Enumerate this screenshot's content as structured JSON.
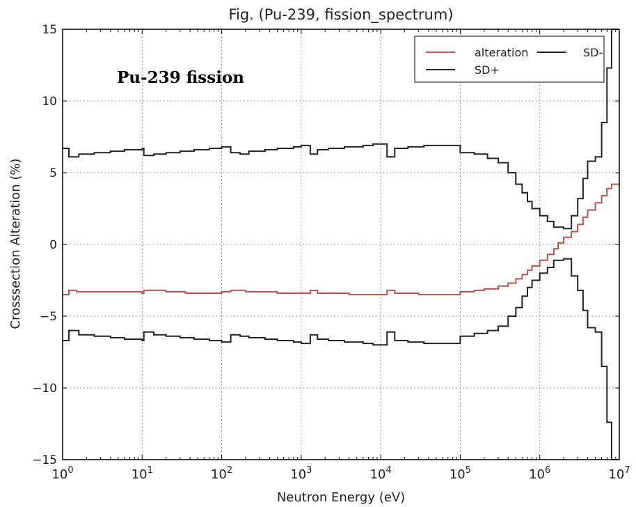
{
  "chart_data": {
    "type": "line",
    "title": "Fig. (Pu-239, fission_spectrum)",
    "annotation": "Pu-239 fission",
    "xlabel": "Neutron Energy (eV)",
    "ylabel": "Crosssection Alteration (%)",
    "xscale": "log",
    "xlim": [
      1,
      10000000
    ],
    "ylim": [
      -15,
      15
    ],
    "grid": true,
    "legend_position": "top-right",
    "x_ticks": [
      {
        "value": 1,
        "base": "10",
        "exp": "0"
      },
      {
        "value": 10,
        "base": "10",
        "exp": "1"
      },
      {
        "value": 100,
        "base": "10",
        "exp": "2"
      },
      {
        "value": 1000,
        "base": "10",
        "exp": "3"
      },
      {
        "value": 10000,
        "base": "10",
        "exp": "4"
      },
      {
        "value": 100000,
        "base": "10",
        "exp": "5"
      },
      {
        "value": 1000000,
        "base": "10",
        "exp": "6"
      },
      {
        "value": 10000000,
        "base": "10",
        "exp": "7"
      }
    ],
    "y_ticks": [
      {
        "value": 15,
        "label": "15"
      },
      {
        "value": 10,
        "label": "10"
      },
      {
        "value": 5,
        "label": "5"
      },
      {
        "value": 0,
        "label": "0"
      },
      {
        "value": -5,
        "label": "−5"
      },
      {
        "value": -10,
        "label": "−10"
      },
      {
        "value": -15,
        "label": "−15"
      }
    ],
    "series": [
      {
        "name": "alteration",
        "color": "#c0504d",
        "style": "step",
        "points": [
          [
            1,
            -3.5
          ],
          [
            1.2,
            -3.2
          ],
          [
            1.5,
            -3.3
          ],
          [
            10,
            -3.4
          ],
          [
            10.5,
            -3.2
          ],
          [
            20,
            -3.3
          ],
          [
            35,
            -3.4
          ],
          [
            100,
            -3.3
          ],
          [
            130,
            -3.2
          ],
          [
            200,
            -3.3
          ],
          [
            500,
            -3.4
          ],
          [
            1000,
            -3.4
          ],
          [
            1300,
            -3.2
          ],
          [
            1600,
            -3.4
          ],
          [
            4000,
            -3.5
          ],
          [
            8000,
            -3.5
          ],
          [
            9500,
            -3.5
          ],
          [
            12000,
            -3.2
          ],
          [
            15000,
            -3.4
          ],
          [
            20000,
            -3.4
          ],
          [
            30000,
            -3.5
          ],
          [
            50000,
            -3.5
          ],
          [
            100000,
            -3.3
          ],
          [
            150000,
            -3.2
          ],
          [
            200000,
            -3.1
          ],
          [
            300000,
            -2.9
          ],
          [
            400000,
            -2.7
          ],
          [
            500000,
            -2.4
          ],
          [
            600000,
            -2.1
          ],
          [
            700000,
            -1.8
          ],
          [
            800000,
            -1.5
          ],
          [
            1000000,
            -1.1
          ],
          [
            1250000,
            -0.7
          ],
          [
            1500000,
            -0.3
          ],
          [
            1700000,
            0.1
          ],
          [
            2000000,
            0.5
          ],
          [
            2500000,
            0.9
          ],
          [
            3000000,
            1.4
          ],
          [
            3500000,
            1.9
          ],
          [
            4000000,
            2.4
          ],
          [
            5000000,
            2.9
          ],
          [
            6000000,
            3.4
          ],
          [
            7000000,
            3.9
          ],
          [
            8000000,
            4.2
          ],
          [
            10000000,
            4.2
          ]
        ]
      },
      {
        "name": "SD+",
        "color": "#222222",
        "style": "step",
        "points": [
          [
            1,
            6.7
          ],
          [
            1.2,
            6.1
          ],
          [
            1.6,
            6.3
          ],
          [
            2.5,
            6.4
          ],
          [
            4,
            6.5
          ],
          [
            6,
            6.6
          ],
          [
            10,
            6.7
          ],
          [
            10.5,
            6.2
          ],
          [
            14,
            6.3
          ],
          [
            20,
            6.4
          ],
          [
            30,
            6.5
          ],
          [
            45,
            6.6
          ],
          [
            70,
            6.7
          ],
          [
            100,
            6.8
          ],
          [
            130,
            6.4
          ],
          [
            170,
            6.3
          ],
          [
            220,
            6.5
          ],
          [
            350,
            6.6
          ],
          [
            500,
            6.7
          ],
          [
            800,
            6.8
          ],
          [
            1000,
            6.9
          ],
          [
            1300,
            6.3
          ],
          [
            1600,
            6.6
          ],
          [
            2200,
            6.7
          ],
          [
            3500,
            6.8
          ],
          [
            6000,
            6.9
          ],
          [
            8000,
            7.0
          ],
          [
            12000,
            6.1
          ],
          [
            15000,
            6.7
          ],
          [
            22000,
            6.8
          ],
          [
            35000,
            6.9
          ],
          [
            60000,
            6.9
          ],
          [
            100000,
            6.4
          ],
          [
            150000,
            6.3
          ],
          [
            220000,
            6.0
          ],
          [
            300000,
            5.7
          ],
          [
            400000,
            5.0
          ],
          [
            500000,
            4.2
          ],
          [
            600000,
            3.6
          ],
          [
            700000,
            3.0
          ],
          [
            800000,
            2.5
          ],
          [
            1000000,
            2.0
          ],
          [
            1250000,
            1.6
          ],
          [
            1500000,
            1.2
          ],
          [
            2000000,
            1.1
          ],
          [
            2500000,
            2.0
          ],
          [
            3000000,
            3.2
          ],
          [
            3500000,
            4.6
          ],
          [
            4000000,
            5.8
          ],
          [
            5000000,
            6.1
          ],
          [
            6000000,
            8.5
          ],
          [
            7000000,
            12.3
          ],
          [
            8000000,
            15.0
          ],
          [
            10000000,
            15.0
          ]
        ]
      },
      {
        "name": "SD-",
        "color": "#222222",
        "style": "step",
        "points": [
          [
            1,
            -6.7
          ],
          [
            1.2,
            -6.0
          ],
          [
            1.6,
            -6.3
          ],
          [
            2.5,
            -6.4
          ],
          [
            4,
            -6.5
          ],
          [
            6,
            -6.6
          ],
          [
            10,
            -6.7
          ],
          [
            10.5,
            -6.1
          ],
          [
            14,
            -6.3
          ],
          [
            20,
            -6.4
          ],
          [
            30,
            -6.5
          ],
          [
            45,
            -6.6
          ],
          [
            70,
            -6.7
          ],
          [
            100,
            -6.8
          ],
          [
            130,
            -6.3
          ],
          [
            170,
            -6.4
          ],
          [
            220,
            -6.5
          ],
          [
            350,
            -6.6
          ],
          [
            500,
            -6.7
          ],
          [
            800,
            -6.8
          ],
          [
            1000,
            -6.9
          ],
          [
            1300,
            -6.3
          ],
          [
            1600,
            -6.6
          ],
          [
            2200,
            -6.7
          ],
          [
            3500,
            -6.8
          ],
          [
            6000,
            -6.9
          ],
          [
            8000,
            -7.0
          ],
          [
            12000,
            -6.1
          ],
          [
            15000,
            -6.7
          ],
          [
            22000,
            -6.8
          ],
          [
            35000,
            -6.9
          ],
          [
            60000,
            -6.9
          ],
          [
            100000,
            -6.4
          ],
          [
            150000,
            -6.2
          ],
          [
            220000,
            -6.0
          ],
          [
            300000,
            -5.7
          ],
          [
            400000,
            -5.0
          ],
          [
            500000,
            -4.4
          ],
          [
            600000,
            -3.6
          ],
          [
            700000,
            -3.0
          ],
          [
            800000,
            -2.5
          ],
          [
            1000000,
            -2.0
          ],
          [
            1250000,
            -1.6
          ],
          [
            1500000,
            -1.1
          ],
          [
            2000000,
            -1.0
          ],
          [
            2500000,
            -2.2
          ],
          [
            3000000,
            -3.2
          ],
          [
            3500000,
            -4.6
          ],
          [
            4000000,
            -5.8
          ],
          [
            5000000,
            -6.1
          ],
          [
            6000000,
            -8.5
          ],
          [
            7000000,
            -12.4
          ],
          [
            8000000,
            -15.0
          ],
          [
            10000000,
            -15.0
          ]
        ]
      }
    ],
    "legend": [
      {
        "label": "alteration",
        "color": "#c0504d"
      },
      {
        "label": "SD+",
        "color": "#222222"
      },
      {
        "label": "SD-",
        "color": "#222222"
      }
    ]
  }
}
